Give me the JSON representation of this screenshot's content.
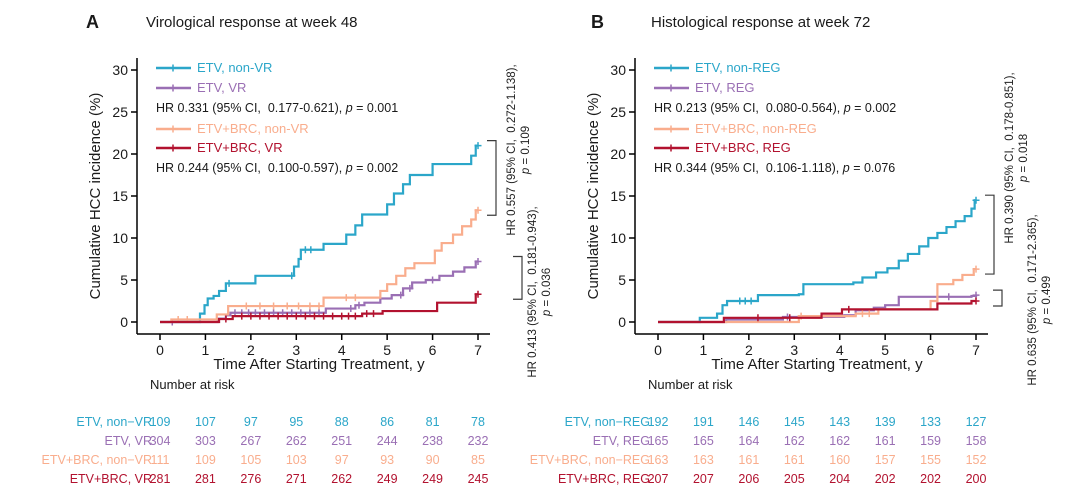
{
  "chart_data": [
    {
      "type": "line",
      "letter": "A",
      "title": "Virological response at week 48",
      "xlabel": "Time After Starting Treatment, y",
      "ylabel": "Cumulative HCC incidence (%)",
      "risk_header": "Number at risk",
      "xlim": [
        0,
        7
      ],
      "ylim": [
        0,
        30
      ],
      "xticks": [
        0,
        1,
        2,
        3,
        4,
        5,
        6,
        7
      ],
      "yticks": [
        0,
        5,
        10,
        15,
        20,
        25,
        30
      ],
      "series": [
        {
          "name": "ETV, non-VR",
          "risk_label": "ETV, non−VR",
          "color": "#2BA6C9",
          "steps": [
            [
              0,
              0
            ],
            [
              0.85,
              0
            ],
            [
              0.88,
              1
            ],
            [
              0.98,
              2
            ],
            [
              1.05,
              2.8
            ],
            [
              1.18,
              3.1
            ],
            [
              1.3,
              3.7
            ],
            [
              1.45,
              4.6
            ],
            [
              2.1,
              5.5
            ],
            [
              2.95,
              6.6
            ],
            [
              3.05,
              7.5
            ],
            [
              3.1,
              8.6
            ],
            [
              3.6,
              9.3
            ],
            [
              4.1,
              10.4
            ],
            [
              4.3,
              11.5
            ],
            [
              4.45,
              12.8
            ],
            [
              5,
              14
            ],
            [
              5.15,
              15.3
            ],
            [
              5.35,
              16.4
            ],
            [
              5.5,
              17.5
            ],
            [
              6,
              18.8
            ],
            [
              6.85,
              19.8
            ],
            [
              6.95,
              21
            ],
            [
              7,
              21
            ]
          ],
          "censors": [
            1.52,
            2.9,
            3.2,
            3.32,
            7
          ],
          "risk": [
            109,
            107,
            97,
            95,
            88,
            86,
            81,
            78
          ]
        },
        {
          "name": "ETV, VR",
          "risk_label": "ETV, VR",
          "color": "#9A6FB4",
          "steps": [
            [
              0,
              0
            ],
            [
              1.2,
              0
            ],
            [
              1.27,
              0.4
            ],
            [
              1.45,
              0.8
            ],
            [
              1.55,
              1.1
            ],
            [
              3.65,
              1.6
            ],
            [
              4.3,
              2
            ],
            [
              4.5,
              2.3
            ],
            [
              4.85,
              2.8
            ],
            [
              5.1,
              3.2
            ],
            [
              5.35,
              4
            ],
            [
              5.55,
              4.7
            ],
            [
              5.85,
              5
            ],
            [
              6.15,
              5.5
            ],
            [
              6.45,
              6
            ],
            [
              6.7,
              6.5
            ],
            [
              6.95,
              7.2
            ],
            [
              7,
              7.2
            ]
          ],
          "censors": [
            0.27,
            1.65,
            1.8,
            1.95,
            2.1,
            2.3,
            2.5,
            2.7,
            2.9,
            3.1,
            3.3,
            3.5,
            4.2,
            4.38,
            5.3,
            5.5,
            6,
            7
          ],
          "risk": [
            304,
            303,
            267,
            262,
            251,
            244,
            238,
            232
          ]
        },
        {
          "name": "ETV+BRC, non-VR",
          "risk_label": "ETV+BRC, non−VR",
          "color": "#F9AD8D",
          "steps": [
            [
              0,
              0
            ],
            [
              0.22,
              0
            ],
            [
              0.25,
              0.3
            ],
            [
              1.25,
              0.9
            ],
            [
              1.5,
              1.9
            ],
            [
              3.6,
              2.9
            ],
            [
              4.85,
              3.7
            ],
            [
              5,
              4.5
            ],
            [
              5.2,
              5.5
            ],
            [
              5.4,
              6.4
            ],
            [
              5.6,
              7
            ],
            [
              6.05,
              8.5
            ],
            [
              6.2,
              9.4
            ],
            [
              6.45,
              10.4
            ],
            [
              6.65,
              11.4
            ],
            [
              6.85,
              12.2
            ],
            [
              6.95,
              13.3
            ],
            [
              7,
              13.3
            ]
          ],
          "censors": [
            0.4,
            0.6,
            1.9,
            2.2,
            2.5,
            2.8,
            3.05,
            3.3,
            3.5,
            4.1,
            4.3,
            7
          ],
          "risk": [
            111,
            109,
            105,
            103,
            97,
            93,
            90,
            85
          ]
        },
        {
          "name": "ETV+BRC, VR",
          "risk_label": "ETV+BRC, VR",
          "color": "#B2122F",
          "steps": [
            [
              0,
              0
            ],
            [
              1.25,
              0
            ],
            [
              1.3,
              0.35
            ],
            [
              1.6,
              0.7
            ],
            [
              4.45,
              1
            ],
            [
              4.9,
              1.3
            ],
            [
              6.1,
              2.3
            ],
            [
              6.95,
              3.3
            ],
            [
              7,
              3.3
            ]
          ],
          "censors": [
            1.45,
            1.8,
            2,
            2.2,
            2.4,
            2.6,
            2.8,
            3,
            3.2,
            3.4,
            3.6,
            3.8,
            4,
            4.15,
            4.3,
            4.55,
            4.7,
            7
          ],
          "risk": [
            281,
            281,
            276,
            271,
            262,
            249,
            249,
            245
          ]
        }
      ],
      "legend_rows": [
        {
          "series": 0
        },
        {
          "series": 1
        },
        {
          "stat": 0
        },
        {
          "series": 2
        },
        {
          "series": 3
        },
        {
          "stat": 1
        }
      ],
      "stats": [
        {
          "pre": "HR 0.331 (95% CI,  0.177-0.621), ",
          "p": "p",
          "post": " = 0.001"
        },
        {
          "pre": "HR 0.244 (95% CI,  0.100-0.597), ",
          "p": "p",
          "post": " = 0.002"
        }
      ],
      "annotations": [
        {
          "line1": "HR 0.557 (95% CI,  0.272-1.138),",
          "p": "p",
          "post": " = 0.109",
          "from_series": 0,
          "to_series": 2
        },
        {
          "line1": "HR 0.413 (95% CI,  0.181-0.943),",
          "p": "p",
          "post": " = 0.036",
          "from_series": 1,
          "to_series": 3
        }
      ]
    },
    {
      "type": "line",
      "letter": "B",
      "title": "Histological response at week 72",
      "xlabel": "Time After Starting Treatment, y",
      "ylabel": "Cumulative HCC incidence (%)",
      "risk_header": "Number at risk",
      "xlim": [
        0,
        7
      ],
      "ylim": [
        0,
        30
      ],
      "xticks": [
        0,
        1,
        2,
        3,
        4,
        5,
        6,
        7
      ],
      "yticks": [
        0,
        5,
        10,
        15,
        20,
        25,
        30
      ],
      "series": [
        {
          "name": "ETV, non-REG",
          "risk_label": "ETV, non−REG",
          "color": "#2BA6C9",
          "steps": [
            [
              0,
              0
            ],
            [
              0.88,
              0
            ],
            [
              0.92,
              0.5
            ],
            [
              1.3,
              1
            ],
            [
              1.42,
              2
            ],
            [
              1.52,
              2.5
            ],
            [
              2.2,
              3.2
            ],
            [
              3.1,
              3.3
            ],
            [
              3.2,
              4.5
            ],
            [
              4.3,
              4.7
            ],
            [
              4.5,
              5.3
            ],
            [
              4.8,
              5.9
            ],
            [
              5.05,
              6.4
            ],
            [
              5.3,
              7.3
            ],
            [
              5.5,
              8.1
            ],
            [
              5.75,
              9
            ],
            [
              5.95,
              10
            ],
            [
              6.15,
              10.6
            ],
            [
              6.35,
              11.3
            ],
            [
              6.55,
              12
            ],
            [
              6.75,
              12.6
            ],
            [
              6.9,
              13.5
            ],
            [
              6.97,
              14.5
            ],
            [
              7,
              14.5
            ]
          ],
          "censors": [
            1.8,
            1.92,
            2.05,
            7
          ],
          "risk": [
            192,
            191,
            146,
            145,
            143,
            139,
            133,
            127
          ]
        },
        {
          "name": "ETV, REG",
          "risk_label": "ETV, REG",
          "color": "#9A6FB4",
          "steps": [
            [
              0,
              0
            ],
            [
              1.4,
              0
            ],
            [
              1.5,
              0.3
            ],
            [
              2.75,
              0.6
            ],
            [
              4.1,
              0.8
            ],
            [
              4.35,
              1.4
            ],
            [
              4.75,
              1.7
            ],
            [
              5,
              2
            ],
            [
              5.3,
              3
            ],
            [
              6.9,
              3.1
            ],
            [
              7,
              3.2
            ]
          ],
          "censors": [
            2.85,
            6.4,
            7
          ],
          "risk": [
            165,
            165,
            164,
            162,
            162,
            161,
            159,
            158
          ]
        },
        {
          "name": "ETV+BRC, non-REG",
          "risk_label": "ETV+BRC, non−REG",
          "color": "#F9AD8D",
          "steps": [
            [
              0,
              0
            ],
            [
              3,
              0
            ],
            [
              3.1,
              0.7
            ],
            [
              4.35,
              1
            ],
            [
              4.85,
              1.5
            ],
            [
              6,
              2.5
            ],
            [
              6.15,
              4.5
            ],
            [
              6.5,
              5
            ],
            [
              6.7,
              5.6
            ],
            [
              6.95,
              6.3
            ],
            [
              7,
              6.3
            ]
          ],
          "censors": [
            3.15,
            4.5,
            4.65,
            7
          ],
          "risk": [
            163,
            163,
            161,
            161,
            160,
            157,
            155,
            152
          ]
        },
        {
          "name": "ETV+BRC, REG",
          "risk_label": "ETV+BRC, REG",
          "color": "#B2122F",
          "steps": [
            [
              0,
              0
            ],
            [
              1.35,
              0
            ],
            [
              1.45,
              0.5
            ],
            [
              3.6,
              1
            ],
            [
              4.05,
              1.5
            ],
            [
              6.15,
              2.2
            ],
            [
              6.9,
              2.5
            ],
            [
              7,
              2.5
            ]
          ],
          "censors": [
            2.2,
            2.9,
            4.2,
            7
          ],
          "risk": [
            207,
            207,
            206,
            205,
            204,
            202,
            202,
            200
          ]
        }
      ],
      "legend_rows": [
        {
          "series": 0
        },
        {
          "series": 1
        },
        {
          "stat": 0
        },
        {
          "series": 2
        },
        {
          "series": 3
        },
        {
          "stat": 1
        }
      ],
      "stats": [
        {
          "pre": "HR 0.213 (95% CI,  0.080-0.564), ",
          "p": "p",
          "post": " = 0.002"
        },
        {
          "pre": "HR 0.344 (95% CI,  0.106-1.118), ",
          "p": "p",
          "post": " = 0.076"
        }
      ],
      "annotations": [
        {
          "line1": "HR 0.390 (95% CI,  0.178-0.851),",
          "p": "p",
          "post": " = 0.018",
          "from_series": 0,
          "to_series": 2
        },
        {
          "line1": "HR 0.635 (95% CI,  0.171-2.365),",
          "p": "p",
          "post": " = 0.499",
          "from_series": 1,
          "to_series": 3
        }
      ]
    }
  ]
}
